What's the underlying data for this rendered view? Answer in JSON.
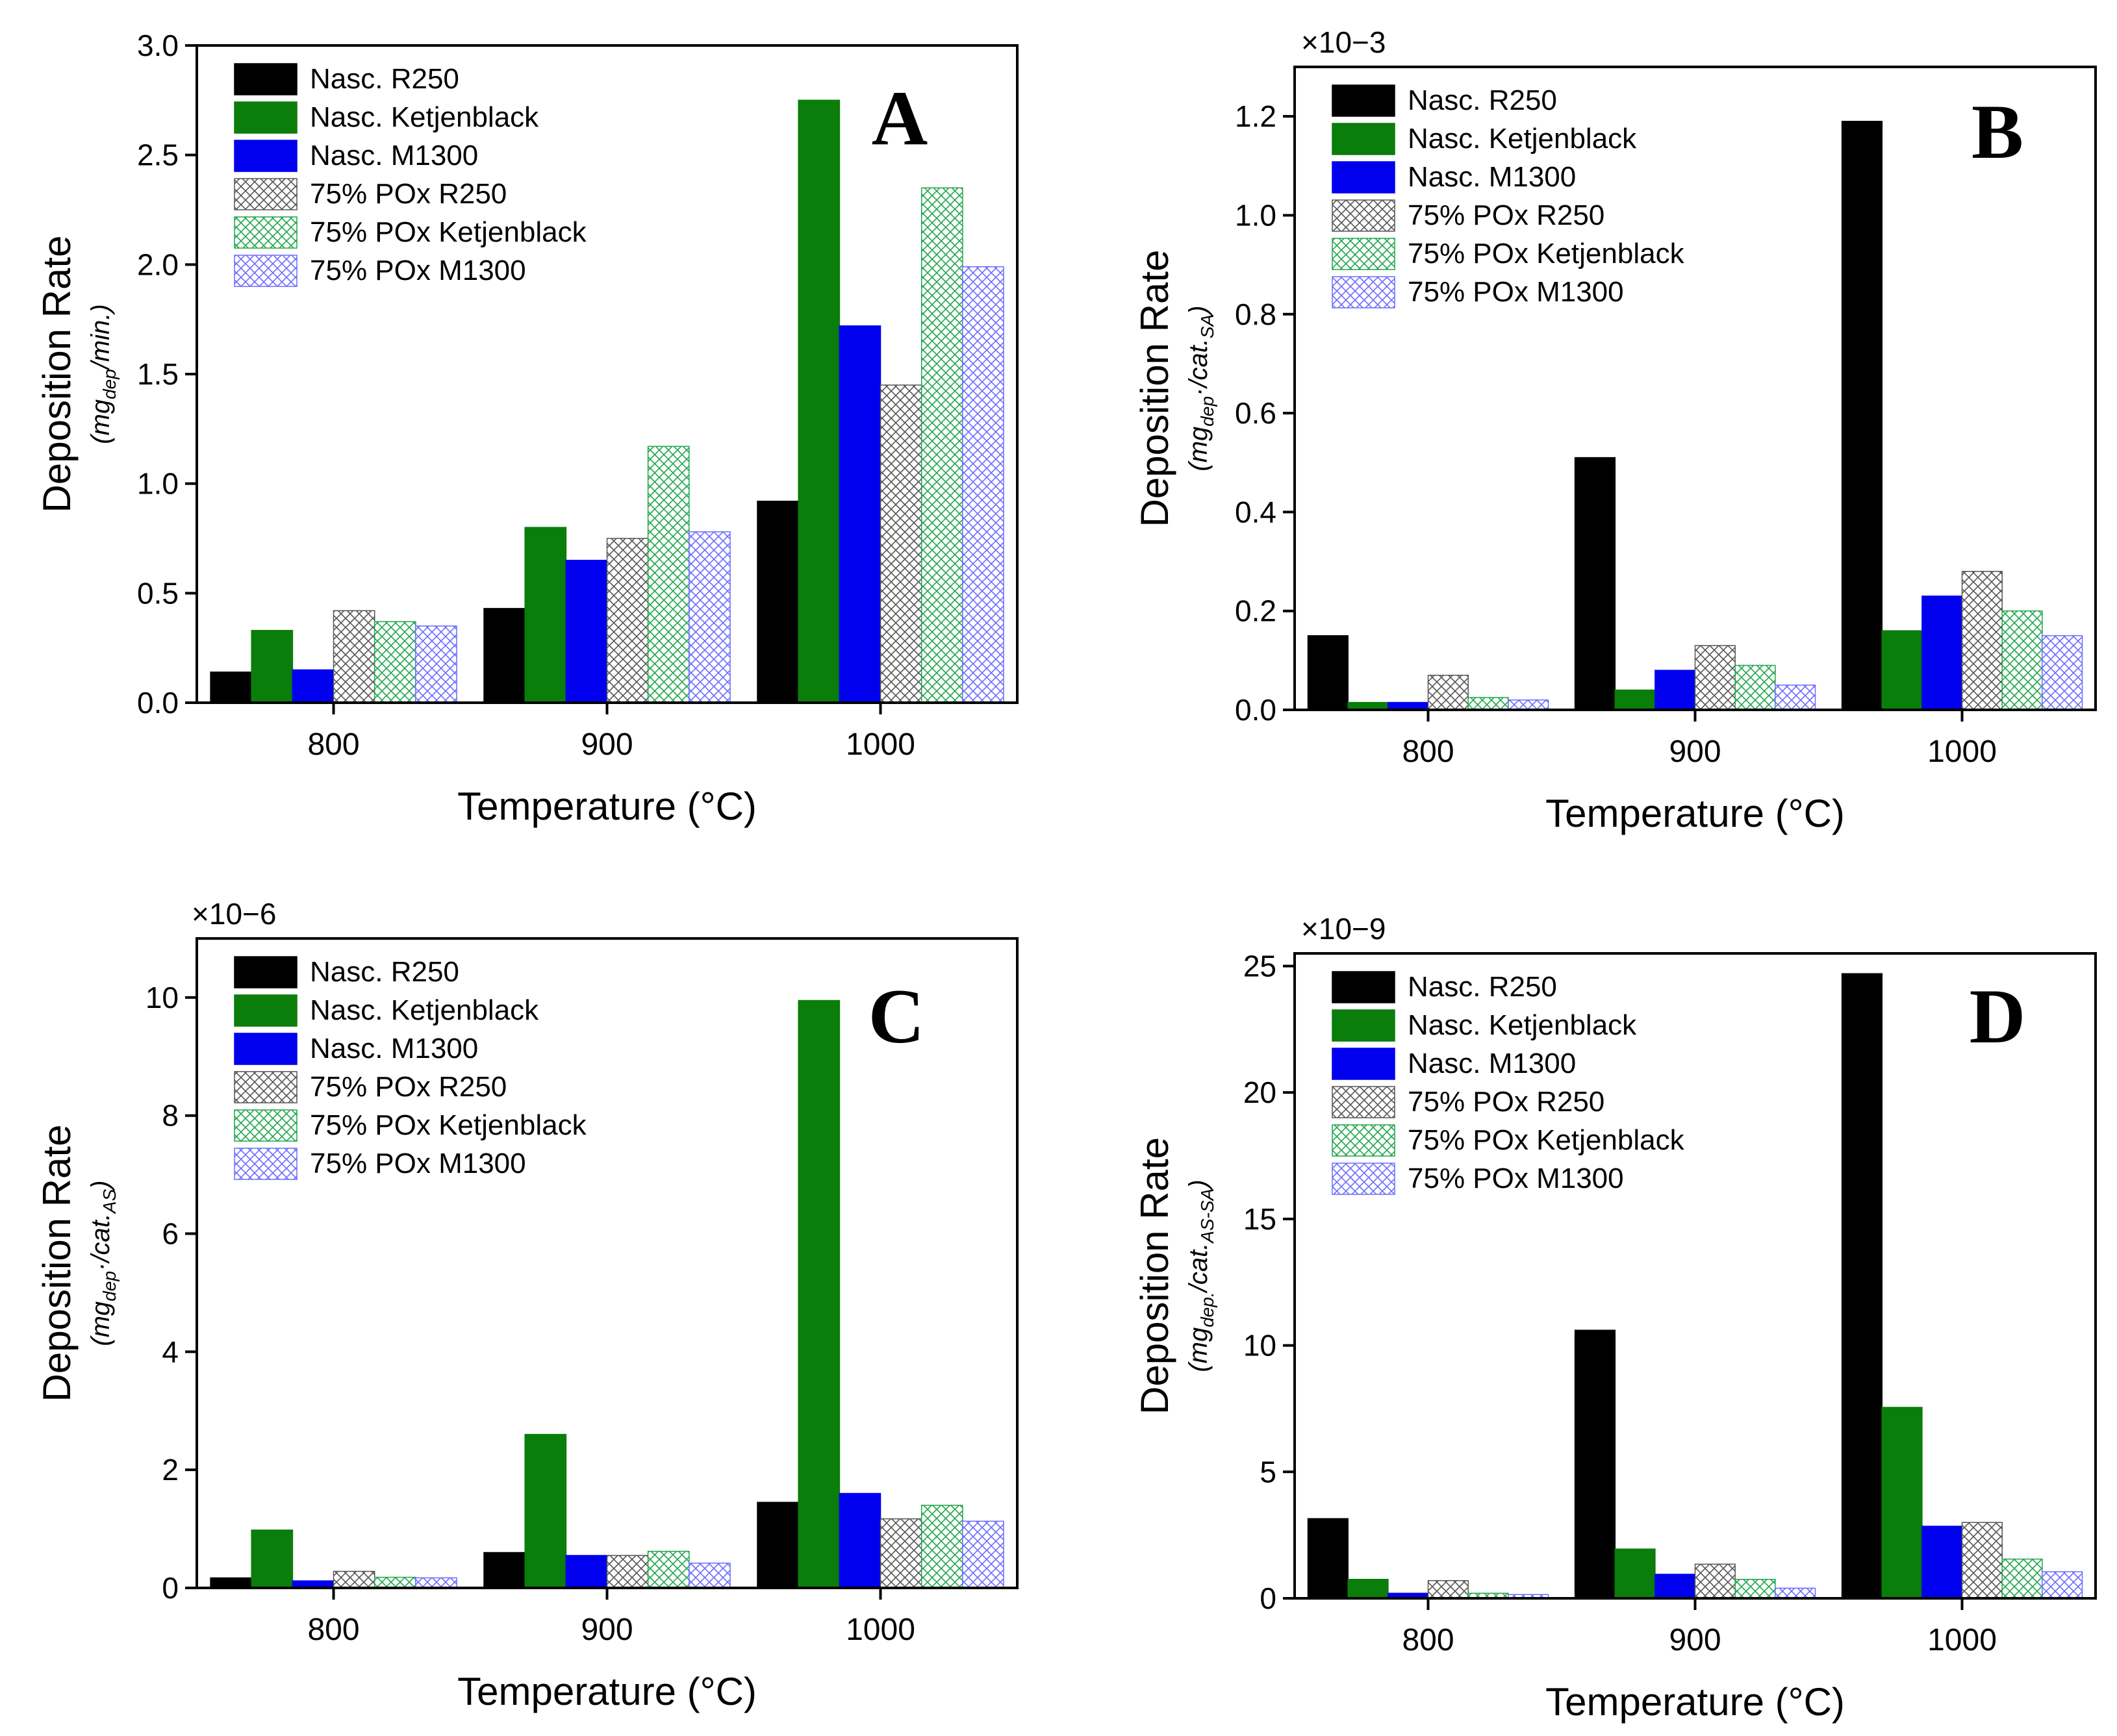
{
  "figure": {
    "x_axis_title": "Temperature (°C)",
    "y_axis_title": "Deposition Rate"
  },
  "series_styles": [
    {
      "name": "Nasc. R250",
      "fill": "#000000",
      "stroke": "#000000",
      "pattern": "solid"
    },
    {
      "name": "Nasc. Ketjenblack",
      "fill": "#0a7d0a",
      "stroke": "#0a7d0a",
      "pattern": "solid"
    },
    {
      "name": "Nasc. M1300",
      "fill": "#0000ee",
      "stroke": "#0000ee",
      "pattern": "solid"
    },
    {
      "name": "75% POx R250",
      "fill": "#555555",
      "stroke": "#555555",
      "pattern": "crosshatch"
    },
    {
      "name": "75% POx Ketjenblack",
      "fill": "#1fa64a",
      "stroke": "#1fa64a",
      "pattern": "crosshatch"
    },
    {
      "name": "75% POx M1300",
      "fill": "#6b6bff",
      "stroke": "#6b6bff",
      "pattern": "crosshatch"
    }
  ],
  "chart_data": [
    {
      "type": "bar",
      "panel": "A",
      "title": "",
      "categories": [
        "800",
        "900",
        "1000"
      ],
      "xlabel": "Temperature (°C)",
      "ylabel": "Deposition Rate",
      "ylabel_unit": {
        "pre": "(mg",
        "sub": "dep",
        "post": "/min.)"
      },
      "multiplier": "",
      "ylim": [
        0,
        3.0
      ],
      "yticks": [
        "0.0",
        "0.5",
        "1.0",
        "1.5",
        "2.0",
        "2.5",
        "3.0"
      ],
      "series": [
        {
          "name": "Nasc. R250",
          "values": [
            0.14,
            0.43,
            0.92
          ]
        },
        {
          "name": "Nasc. Ketjenblack",
          "values": [
            0.33,
            0.8,
            2.75
          ]
        },
        {
          "name": "Nasc. M1300",
          "values": [
            0.15,
            0.65,
            1.72
          ]
        },
        {
          "name": "75% POx R250",
          "values": [
            0.42,
            0.75,
            1.45
          ]
        },
        {
          "name": "75% POx Ketjenblack",
          "values": [
            0.37,
            1.17,
            2.35
          ]
        },
        {
          "name": "75% POx M1300",
          "values": [
            0.35,
            0.78,
            1.99
          ]
        }
      ],
      "legend": "top-left"
    },
    {
      "type": "bar",
      "panel": "B",
      "title": "",
      "categories": [
        "800",
        "900",
        "1000"
      ],
      "xlabel": "Temperature (°C)",
      "ylabel": "Deposition Rate",
      "ylabel_unit": {
        "pre": "(mg",
        "sub": "dep",
        "post": "·/cat.",
        "sub2": "SA",
        "post2": ")"
      },
      "multiplier": "×10−3",
      "ylim": [
        0,
        1.3
      ],
      "yticks": [
        "0.0",
        "0.2",
        "0.4",
        "0.6",
        "0.8",
        "1.0",
        "1.2"
      ],
      "series": [
        {
          "name": "Nasc. R250",
          "values": [
            0.15,
            0.51,
            1.19
          ]
        },
        {
          "name": "Nasc. Ketjenblack",
          "values": [
            0.015,
            0.04,
            0.16
          ]
        },
        {
          "name": "Nasc. M1300",
          "values": [
            0.015,
            0.08,
            0.23
          ]
        },
        {
          "name": "75% POx R250",
          "values": [
            0.07,
            0.13,
            0.28
          ]
        },
        {
          "name": "75% POx Ketjenblack",
          "values": [
            0.025,
            0.09,
            0.2
          ]
        },
        {
          "name": "75% POx M1300",
          "values": [
            0.02,
            0.05,
            0.15
          ]
        }
      ],
      "legend": "top-left"
    },
    {
      "type": "bar",
      "panel": "C",
      "title": "",
      "categories": [
        "800",
        "900",
        "1000"
      ],
      "xlabel": "Temperature (°C)",
      "ylabel": "Deposition Rate",
      "ylabel_unit": {
        "pre": "(mg",
        "sub": "dep",
        "post": "·/cat.",
        "sub2": "AS",
        "post2": ")"
      },
      "multiplier": "×10−6",
      "ylim": [
        0,
        11
      ],
      "yticks": [
        "0",
        "2",
        "4",
        "6",
        "8",
        "10"
      ],
      "series": [
        {
          "name": "Nasc. R250",
          "values": [
            0.17,
            0.6,
            1.45
          ]
        },
        {
          "name": "Nasc. Ketjenblack",
          "values": [
            0.98,
            2.6,
            9.95
          ]
        },
        {
          "name": "Nasc. M1300",
          "values": [
            0.12,
            0.55,
            1.6
          ]
        },
        {
          "name": "75% POx R250",
          "values": [
            0.28,
            0.55,
            1.17
          ]
        },
        {
          "name": "75% POx Ketjenblack",
          "values": [
            0.18,
            0.62,
            1.4
          ]
        },
        {
          "name": "75% POx M1300",
          "values": [
            0.17,
            0.42,
            1.13
          ]
        }
      ],
      "legend": "top-left"
    },
    {
      "type": "bar",
      "panel": "D",
      "title": "",
      "categories": [
        "800",
        "900",
        "1000"
      ],
      "xlabel": "Temperature (°C)",
      "ylabel": "Deposition Rate",
      "ylabel_unit": {
        "pre": "(mg",
        "sub": "dep.",
        "post": "/cat.",
        "sub2": "AS-SA",
        "post2": ")"
      },
      "multiplier": "×10−9",
      "ylim": [
        0,
        25.5
      ],
      "yticks": [
        "0",
        "5",
        "10",
        "15",
        "20",
        "25"
      ],
      "series": [
        {
          "name": "Nasc. R250",
          "values": [
            3.15,
            10.6,
            24.7
          ]
        },
        {
          "name": "Nasc. Ketjenblack",
          "values": [
            0.75,
            1.95,
            7.55
          ]
        },
        {
          "name": "Nasc. M1300",
          "values": [
            0.2,
            0.95,
            2.85
          ]
        },
        {
          "name": "75% POx R250",
          "values": [
            0.7,
            1.35,
            3.0
          ]
        },
        {
          "name": "75% POx Ketjenblack",
          "values": [
            0.2,
            0.75,
            1.55
          ]
        },
        {
          "name": "75% POx M1300",
          "values": [
            0.15,
            0.4,
            1.05
          ]
        }
      ],
      "legend": "top-left"
    }
  ]
}
